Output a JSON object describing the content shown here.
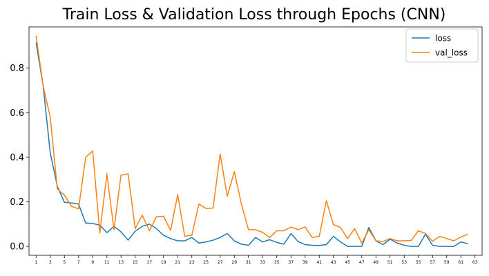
{
  "chart_data": {
    "type": "line",
    "title": "Train Loss & Validation Loss through Epochs (CNN)",
    "xlabel": "",
    "ylabel": "",
    "xlim": [
      0,
      64
    ],
    "ylim": [
      -0.04,
      0.985
    ],
    "y_ticks": [
      0.0,
      0.2,
      0.4,
      0.6,
      0.8
    ],
    "y_tick_labels": [
      "0.0",
      "0.2",
      "0.4",
      "0.6",
      "0.8"
    ],
    "x_ticks": [
      1,
      3,
      5,
      7,
      9,
      11,
      13,
      15,
      17,
      19,
      21,
      23,
      25,
      27,
      29,
      31,
      33,
      35,
      37,
      39,
      41,
      43,
      45,
      47,
      49,
      51,
      53,
      55,
      57,
      59,
      61,
      63
    ],
    "x_tick_labels": [
      "1",
      "3",
      "5",
      "7",
      "9",
      "11",
      "13",
      "15",
      "17",
      "19",
      "21",
      "23",
      "25",
      "27",
      "29",
      "31",
      "33",
      "35",
      "37",
      "39",
      "41",
      "43",
      "45",
      "47",
      "49",
      "51",
      "53",
      "55",
      "57",
      "59",
      "61",
      "63"
    ],
    "grid": false,
    "legend": "upper-right",
    "x": [
      1,
      2,
      3,
      4,
      5,
      6,
      7,
      8,
      9,
      10,
      11,
      12,
      13,
      14,
      15,
      16,
      17,
      18,
      19,
      20,
      21,
      22,
      23,
      24,
      25,
      26,
      27,
      28,
      29,
      30,
      31,
      32,
      33,
      34,
      35,
      36,
      37,
      38,
      39,
      40,
      41,
      42,
      43,
      44,
      45,
      46,
      47,
      48,
      49,
      50,
      51,
      52,
      53,
      54,
      55,
      56,
      57,
      58,
      59,
      60,
      61,
      62
    ],
    "series": [
      {
        "name": "loss",
        "color": "#1f77b4",
        "values": [
          0.915,
          0.72,
          0.42,
          0.27,
          0.198,
          0.195,
          0.19,
          0.105,
          0.103,
          0.095,
          0.062,
          0.09,
          0.065,
          0.028,
          0.068,
          0.09,
          0.1,
          0.08,
          0.05,
          0.035,
          0.025,
          0.025,
          0.04,
          0.015,
          0.02,
          0.028,
          0.04,
          0.058,
          0.025,
          0.01,
          0.005,
          0.04,
          0.02,
          0.03,
          0.018,
          0.01,
          0.057,
          0.022,
          0.008,
          0.005,
          0.004,
          0.008,
          0.045,
          0.02,
          0.0,
          0.0,
          0.0,
          0.085,
          0.025,
          0.008,
          0.032,
          0.015,
          0.005,
          0.0,
          0.0,
          0.055,
          0.005,
          0.0,
          0.0,
          0.0,
          0.02,
          0.012
        ]
      },
      {
        "name": "val_loss",
        "color": "#ff7f0e",
        "values": [
          0.945,
          0.72,
          0.58,
          0.258,
          0.23,
          0.18,
          0.168,
          0.4,
          0.428,
          0.06,
          0.325,
          0.075,
          0.32,
          0.325,
          0.08,
          0.14,
          0.07,
          0.133,
          0.135,
          0.072,
          0.232,
          0.045,
          0.05,
          0.19,
          0.17,
          0.172,
          0.415,
          0.225,
          0.335,
          0.19,
          0.075,
          0.075,
          0.063,
          0.04,
          0.07,
          0.07,
          0.087,
          0.075,
          0.087,
          0.04,
          0.045,
          0.205,
          0.098,
          0.085,
          0.035,
          0.08,
          0.015,
          0.075,
          0.025,
          0.022,
          0.035,
          0.025,
          0.025,
          0.027,
          0.07,
          0.058,
          0.023,
          0.045,
          0.035,
          0.025,
          0.042,
          0.055
        ]
      }
    ]
  }
}
